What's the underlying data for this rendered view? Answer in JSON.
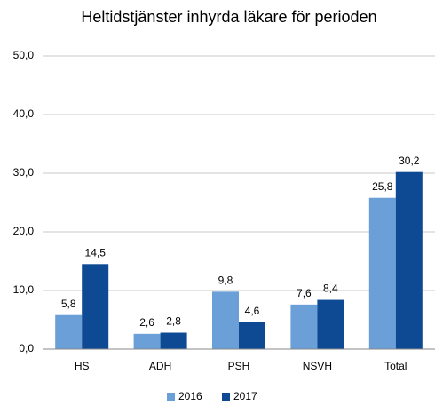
{
  "chart_data": {
    "type": "bar",
    "title": "Heltidstjänster inhyrda läkare för perioden",
    "categories": [
      "HS",
      "ADH",
      "PSH",
      "NSVH",
      "Total"
    ],
    "series": [
      {
        "name": "2016",
        "color": "#6a9fd8",
        "values": [
          5.8,
          2.6,
          9.8,
          7.6,
          25.8
        ],
        "value_labels": [
          "5,8",
          "2,6",
          "9,8",
          "7,6",
          "25,8"
        ]
      },
      {
        "name": "2017",
        "color": "#0e4a94",
        "values": [
          14.5,
          2.8,
          4.6,
          8.4,
          30.2
        ],
        "value_labels": [
          "14,5",
          "2,8",
          "4,6",
          "8,4",
          "30,2"
        ]
      }
    ],
    "ylim": [
      0,
      50
    ],
    "yticks": [
      {
        "value": 0,
        "label": "0,0"
      },
      {
        "value": 10,
        "label": "10,0"
      },
      {
        "value": 20,
        "label": "20,0"
      },
      {
        "value": 30,
        "label": "30,0"
      },
      {
        "value": 40,
        "label": "40,0"
      },
      {
        "value": 50,
        "label": "50,0"
      }
    ],
    "grid": true,
    "legend": "bottom"
  }
}
